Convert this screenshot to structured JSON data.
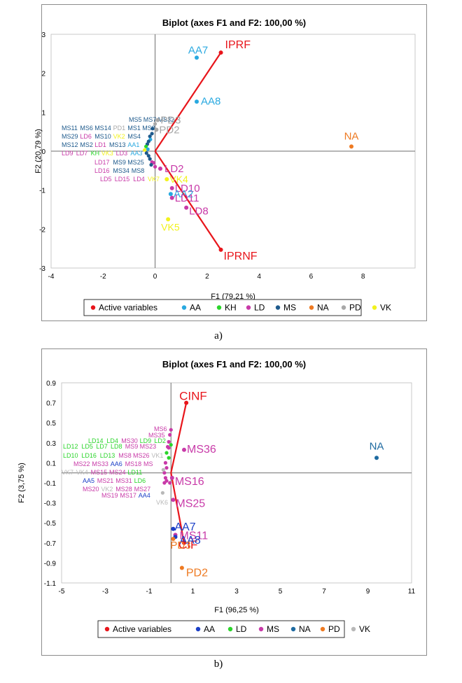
{
  "chart_data": [
    {
      "type": "scatter",
      "id": "a",
      "title": "Biplot (axes F1 and F2: 100,00 %)",
      "xlabel": "F1 (79,21 %)",
      "ylabel": "F2 (20,79 %)",
      "xlim": [
        -4,
        10
      ],
      "ylim": [
        -3,
        3
      ],
      "xticks": [
        -4,
        -2,
        0,
        2,
        4,
        6,
        8
      ],
      "yticks": [
        -3,
        -2,
        -1,
        0,
        1,
        2,
        3
      ],
      "active_variables": [
        {
          "label": "IPRF",
          "x": 2.53,
          "y": 2.53
        },
        {
          "label": "IPRNF",
          "x": 2.53,
          "y": -2.53
        }
      ],
      "large_points": [
        {
          "label": "AA7",
          "x": 1.6,
          "y": 2.4,
          "group": "AA"
        },
        {
          "label": "AA8",
          "x": 1.6,
          "y": 1.27,
          "group": "AA"
        },
        {
          "label": "NA",
          "x": 7.55,
          "y": 0.12,
          "group": "NA"
        },
        {
          "label": "PD3",
          "x": 0.1,
          "y": 0.8,
          "group": "PD"
        },
        {
          "label": "PD2",
          "x": 0.05,
          "y": 0.55,
          "group": "PD"
        },
        {
          "label": "LD2",
          "x": 0.2,
          "y": -0.45,
          "group": "LD"
        },
        {
          "label": "VK4",
          "x": 0.45,
          "y": -0.72,
          "group": "VK"
        },
        {
          "label": "LD10",
          "x": 0.65,
          "y": -0.95,
          "group": "LD"
        },
        {
          "label": "AA2",
          "x": 0.6,
          "y": -1.1,
          "group": "AA"
        },
        {
          "label": "LD11",
          "x": 0.65,
          "y": -1.2,
          "group": "LD"
        },
        {
          "label": "LD8",
          "x": 1.2,
          "y": -1.45,
          "group": "LD"
        },
        {
          "label": "VK5",
          "x": 0.5,
          "y": -1.75,
          "group": "VK"
        }
      ],
      "small_labels": [
        {
          "label": "MS5",
          "group": "MS"
        },
        {
          "label": "MS7",
          "group": "MS"
        },
        {
          "label": "MS32",
          "group": "MS"
        },
        {
          "label": "MS11",
          "group": "MS"
        },
        {
          "label": "MS6",
          "group": "MS"
        },
        {
          "label": "MS14",
          "group": "MS"
        },
        {
          "label": "PD1",
          "group": "PD"
        },
        {
          "label": "MS1",
          "group": "MS"
        },
        {
          "label": "MS3",
          "group": "MS"
        },
        {
          "label": "MS29",
          "group": "MS"
        },
        {
          "label": "LD6",
          "group": "LD"
        },
        {
          "label": "MS10",
          "group": "MS"
        },
        {
          "label": "VK2",
          "group": "VK"
        },
        {
          "label": "MS4",
          "group": "MS"
        },
        {
          "label": "MS12",
          "group": "MS"
        },
        {
          "label": "MS2",
          "group": "MS"
        },
        {
          "label": "LD1",
          "group": "LD"
        },
        {
          "label": "MS13",
          "group": "MS"
        },
        {
          "label": "AA1",
          "group": "AA"
        },
        {
          "label": "LD9",
          "group": "LD"
        },
        {
          "label": "LD7",
          "group": "LD"
        },
        {
          "label": "KH",
          "group": "KH"
        },
        {
          "label": "VK3",
          "group": "VK"
        },
        {
          "label": "LD3",
          "group": "LD"
        },
        {
          "label": "AA3",
          "group": "AA"
        },
        {
          "label": "LD17",
          "group": "LD"
        },
        {
          "label": "MS9",
          "group": "MS"
        },
        {
          "label": "MS25",
          "group": "MS"
        },
        {
          "label": "LD16",
          "group": "LD"
        },
        {
          "label": "MS34",
          "group": "MS"
        },
        {
          "label": "MS8",
          "group": "MS"
        },
        {
          "label": "LD5",
          "group": "LD"
        },
        {
          "label": "LD15",
          "group": "LD"
        },
        {
          "label": "LD4",
          "group": "LD"
        },
        {
          "label": "VK7",
          "group": "VK"
        }
      ],
      "legend": [
        "Active variables",
        "AA",
        "KH",
        "LD",
        "MS",
        "NA",
        "PD",
        "VK"
      ],
      "group_colors": {
        "Active variables": "#e8151b",
        "AA": "#29a9e0",
        "KH": "#2bd52b",
        "LD": "#c83aa8",
        "MS": "#1e5a8c",
        "NA": "#ee7a22",
        "PD": "#a8a8a8",
        "VK": "#f2f21e"
      },
      "caption": "a)"
    },
    {
      "type": "scatter",
      "id": "b",
      "title": "Biplot (axes F1 and F2: 100,00 %)",
      "xlabel": "F1 (96,25 %)",
      "ylabel": "F2 (3,75 %)",
      "xlim": [
        -5,
        11
      ],
      "ylim": [
        -1.1,
        0.9
      ],
      "xticks": [
        -5,
        -3,
        -1,
        1,
        3,
        5,
        7,
        9,
        11
      ],
      "yticks": [
        "0.9",
        "0.7",
        "0.5",
        "0.3",
        "0.1",
        "-0.1",
        "-0.3",
        "-0.5",
        "-0.7",
        "-0.9",
        "-1.1"
      ],
      "active_variables": [
        {
          "label": "CINF",
          "x": 0.7,
          "y": 0.7
        },
        {
          "label": "CIF",
          "x": 0.6,
          "y": -0.7
        }
      ],
      "large_points": [
        {
          "label": "NA",
          "x": 9.4,
          "y": 0.15,
          "group": "NA"
        },
        {
          "label": "MS36",
          "x": 0.6,
          "y": 0.23,
          "group": "MS"
        },
        {
          "label": "MS16",
          "x": 0.05,
          "y": -0.05,
          "group": "MS"
        },
        {
          "label": "MS25",
          "x": 0.1,
          "y": -0.27,
          "group": "MS"
        },
        {
          "label": "AA7",
          "x": 0.1,
          "y": -0.56,
          "group": "AA"
        },
        {
          "label": "MS11",
          "x": 0.2,
          "y": -0.62,
          "group": "MS"
        },
        {
          "label": "AA8",
          "x": 0.2,
          "y": -0.64,
          "group": "AA"
        },
        {
          "label": "PD3",
          "x": 0.1,
          "y": -0.66,
          "group": "PD"
        },
        {
          "label": "PD2",
          "x": 0.5,
          "y": -0.95,
          "group": "PD"
        }
      ],
      "small_labels": [
        {
          "label": "MS6",
          "group": "MS"
        },
        {
          "label": "MS35",
          "group": "MS"
        },
        {
          "label": "LD14",
          "group": "LD"
        },
        {
          "label": "LD4",
          "group": "LD"
        },
        {
          "label": "MS30",
          "group": "MS"
        },
        {
          "label": "LD9",
          "group": "LD"
        },
        {
          "label": "LD2",
          "group": "LD"
        },
        {
          "label": "LD12",
          "group": "LD"
        },
        {
          "label": "LD5",
          "group": "LD"
        },
        {
          "label": "LD7",
          "group": "LD"
        },
        {
          "label": "LD8",
          "group": "LD"
        },
        {
          "label": "MS9",
          "group": "MS"
        },
        {
          "label": "MS23",
          "group": "MS"
        },
        {
          "label": "LD10",
          "group": "LD"
        },
        {
          "label": "LD16",
          "group": "LD"
        },
        {
          "label": "LD13",
          "group": "LD"
        },
        {
          "label": "MS8",
          "group": "MS"
        },
        {
          "label": "MS26",
          "group": "MS"
        },
        {
          "label": "VK1",
          "group": "VK"
        },
        {
          "label": "MS22",
          "group": "MS"
        },
        {
          "label": "MS33",
          "group": "MS"
        },
        {
          "label": "AA6",
          "group": "AA"
        },
        {
          "label": "MS18",
          "group": "MS"
        },
        {
          "label": "MS",
          "group": "MS"
        },
        {
          "label": "VK7",
          "group": "VK"
        },
        {
          "label": "VK4",
          "group": "VK"
        },
        {
          "label": "MS15",
          "group": "MS"
        },
        {
          "label": "MS24",
          "group": "MS"
        },
        {
          "label": "LD11",
          "group": "LD"
        },
        {
          "label": "AA5",
          "group": "AA"
        },
        {
          "label": "MS21",
          "group": "MS"
        },
        {
          "label": "MS31",
          "group": "MS"
        },
        {
          "label": "LD6",
          "group": "LD"
        },
        {
          "label": "MS20",
          "group": "MS"
        },
        {
          "label": "VK2",
          "group": "VK"
        },
        {
          "label": "MS28",
          "group": "MS"
        },
        {
          "label": "MS27",
          "group": "MS"
        },
        {
          "label": "MS19",
          "group": "MS"
        },
        {
          "label": "MS17",
          "group": "MS"
        },
        {
          "label": "AA4",
          "group": "AA"
        },
        {
          "label": "VK6",
          "group": "VK"
        }
      ],
      "legend": [
        "Active variables",
        "AA",
        "LD",
        "MS",
        "NA",
        "PD",
        "VK"
      ],
      "group_colors": {
        "Active variables": "#e8151b",
        "AA": "#1b3fc7",
        "LD": "#2bd52b",
        "MS": "#c83aa8",
        "NA": "#1e6aa0",
        "PD": "#ee7a22",
        "VK": "#b8b8b8"
      },
      "caption": "b)"
    }
  ]
}
